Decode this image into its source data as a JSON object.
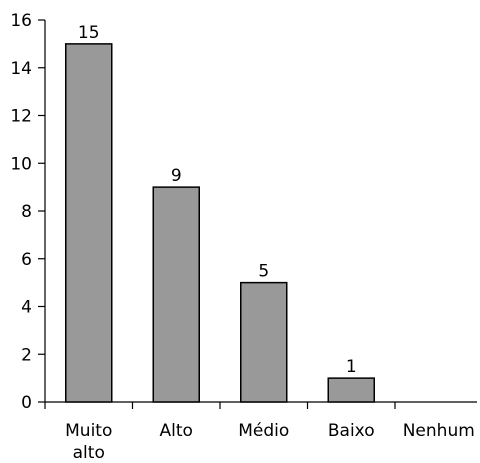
{
  "chart_data": {
    "type": "bar",
    "categories": [
      [
        "Muito",
        "alto"
      ],
      [
        "Alto"
      ],
      [
        "Médio"
      ],
      [
        "Baixo"
      ],
      [
        "Nenhum"
      ]
    ],
    "values": [
      15,
      9,
      5,
      1,
      0
    ],
    "data_labels": [
      "15",
      "9",
      "5",
      "1",
      ""
    ],
    "yticks": [
      0,
      2,
      4,
      6,
      8,
      10,
      12,
      14,
      16
    ],
    "ylim": [
      0,
      16
    ],
    "title": "",
    "xlabel": "",
    "ylabel": "",
    "grid": false,
    "colors": {
      "bar_fill": "#999999",
      "bar_stroke": "#000000"
    }
  }
}
